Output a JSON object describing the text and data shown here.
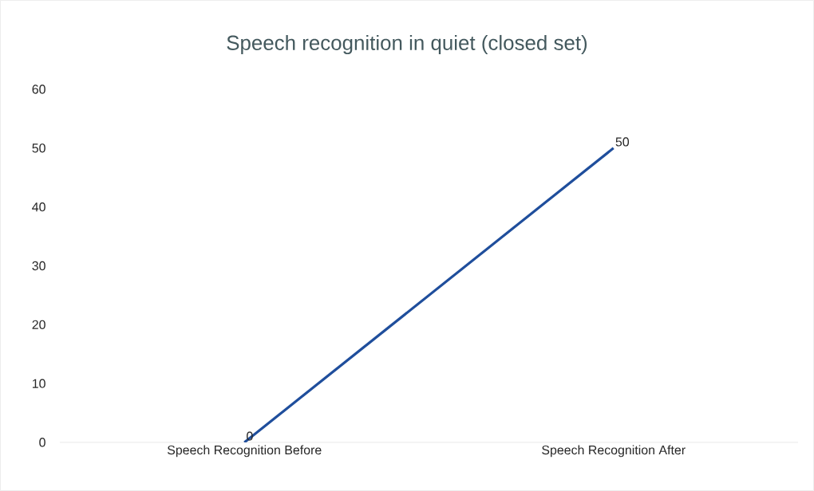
{
  "chart_data": {
    "type": "line",
    "title": "Speech recognition in quiet (closed set)",
    "categories": [
      "Speech Recognition Before",
      "Speech Recognition After"
    ],
    "series": [
      {
        "color": "#1f4e9c",
        "values": [
          0,
          50
        ]
      }
    ],
    "ylim": [
      0,
      60
    ],
    "yticks": [
      0,
      10,
      20,
      30,
      40,
      50,
      60
    ],
    "data_labels": true,
    "marker": "none",
    "line_style": "solid",
    "grid": false
  }
}
